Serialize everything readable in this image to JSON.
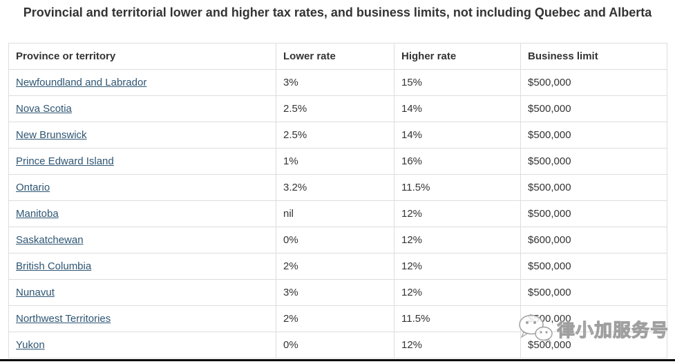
{
  "title": "Provincial and territorial lower and higher tax rates, and business limits, not including Quebec and Alberta",
  "table": {
    "columns": [
      "Province or territory",
      "Lower rate",
      "Higher rate",
      "Business limit"
    ],
    "row_fields": [
      "province",
      "lower_rate",
      "higher_rate",
      "business_limit"
    ],
    "rows": [
      {
        "province": "Newfoundland and Labrador",
        "lower_rate": "3%",
        "higher_rate": "15%",
        "business_limit": "$500,000"
      },
      {
        "province": "Nova Scotia",
        "lower_rate": "2.5%",
        "higher_rate": "14%",
        "business_limit": "$500,000"
      },
      {
        "province": "New Brunswick",
        "lower_rate": "2.5%",
        "higher_rate": "14%",
        "business_limit": "$500,000"
      },
      {
        "province": "Prince Edward Island",
        "lower_rate": "1%",
        "higher_rate": "16%",
        "business_limit": "$500,000"
      },
      {
        "province": "Ontario",
        "lower_rate": "3.2%",
        "higher_rate": "11.5%",
        "business_limit": "$500,000"
      },
      {
        "province": "Manitoba",
        "lower_rate": "nil",
        "higher_rate": "12%",
        "business_limit": "$500,000"
      },
      {
        "province": "Saskatchewan",
        "lower_rate": "0%",
        "higher_rate": "12%",
        "business_limit": "$600,000"
      },
      {
        "province": "British Columbia",
        "lower_rate": "2%",
        "higher_rate": "12%",
        "business_limit": "$500,000"
      },
      {
        "province": "Nunavut",
        "lower_rate": "3%",
        "higher_rate": "12%",
        "business_limit": "$500,000"
      },
      {
        "province": "Northwest Territories",
        "lower_rate": "2%",
        "higher_rate": "11.5%",
        "business_limit": "$500,000"
      },
      {
        "province": "Yukon",
        "lower_rate": "0%",
        "higher_rate": "12%",
        "business_limit": "$500,000"
      }
    ]
  },
  "watermark": {
    "text": "律小加服务号",
    "icon": "wechat-icon"
  },
  "colors": {
    "link": "#2e5573",
    "text": "#333333",
    "border": "#dddddd",
    "bottom_line": "#000000",
    "background": "#ffffff"
  }
}
